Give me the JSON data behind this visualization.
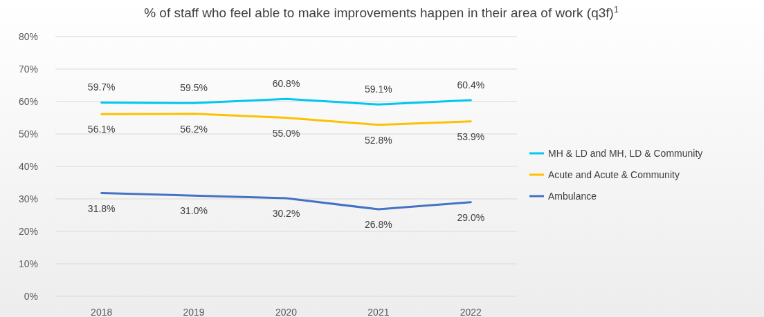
{
  "chart_data": {
    "type": "line",
    "title": "% of staff who feel able to make improvements happen in their area of work (q3f)$^{1}$",
    "categories": [
      "2018",
      "2019",
      "2020",
      "2021",
      "2022"
    ],
    "series": [
      {
        "name": "MH & LD and MH, LD & Community",
        "color": "#00c8f0",
        "values": [
          59.7,
          59.5,
          60.8,
          59.1,
          60.4
        ],
        "value_labels": [
          "59.7%",
          "59.5%",
          "60.8%",
          "59.1%",
          "60.4%"
        ]
      },
      {
        "name": "Acute and Acute & Community",
        "color": "#ffc000",
        "values": [
          56.1,
          56.2,
          55.0,
          52.8,
          53.9
        ],
        "value_labels": [
          "56.1%",
          "56.2%",
          "55.0%",
          "52.8%",
          "53.9%"
        ]
      },
      {
        "name": "Ambulance",
        "color": "#4472c4",
        "values": [
          31.8,
          31.0,
          30.2,
          26.8,
          29.0
        ],
        "value_labels": [
          "31.8%",
          "31.0%",
          "30.2%",
          "26.8%",
          "29.0%"
        ]
      }
    ],
    "ylim": [
      0,
      80
    ],
    "yticks": [
      {
        "value": 0,
        "label": "0%"
      },
      {
        "value": 10,
        "label": "10%"
      },
      {
        "value": 20,
        "label": "20%"
      },
      {
        "value": 30,
        "label": "30%"
      },
      {
        "value": 40,
        "label": "40%"
      },
      {
        "value": 50,
        "label": "50%"
      },
      {
        "value": 60,
        "label": "60%"
      },
      {
        "value": 70,
        "label": "70%"
      },
      {
        "value": 80,
        "label": "80%"
      }
    ],
    "grid": "y",
    "legend": "right",
    "marker": "none",
    "line_style": "solid"
  }
}
